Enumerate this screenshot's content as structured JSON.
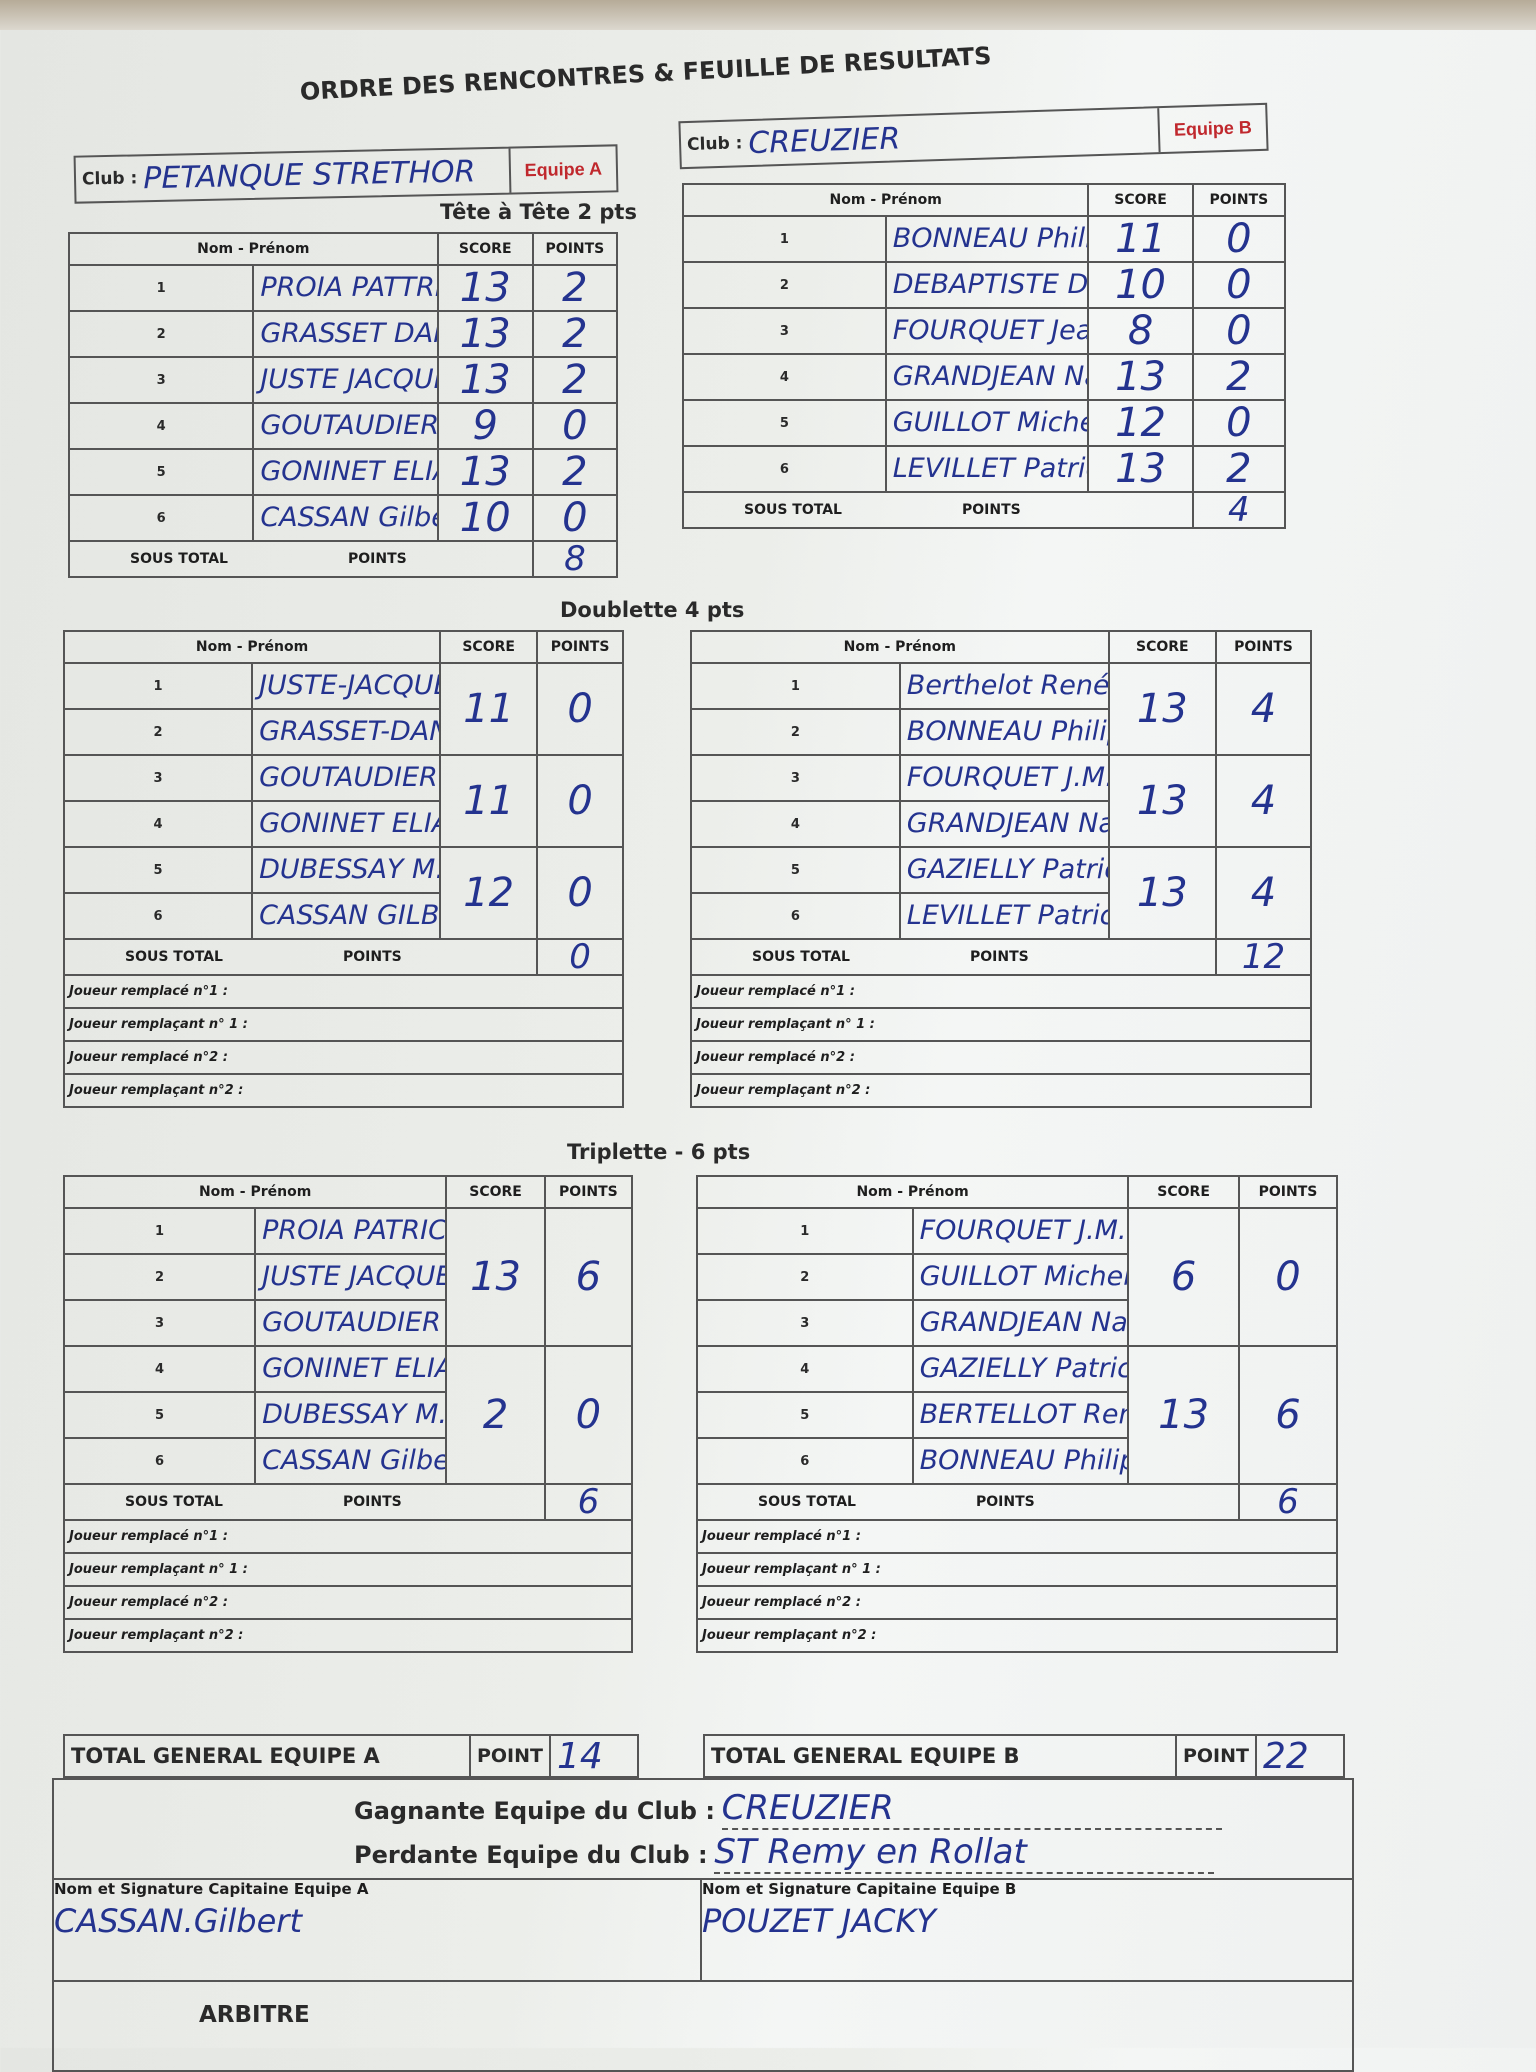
{
  "title": "ORDRE DES RENCONTRES & FEUILLE DE RESULTATS",
  "team_a": {
    "club_label": "Club :",
    "club_value": "PETANQUE STRETHOR",
    "equipe_label": "Equipe A"
  },
  "team_b": {
    "club_label": "Club :",
    "club_value": "CREUZIER",
    "equipe_label": "Equipe B"
  },
  "headers": {
    "name": "Nom - Prénom",
    "score": "SCORE",
    "points": "POINTS",
    "sous_total": "SOUS TOTAL",
    "points_label": "POINTS"
  },
  "replacement_labels": [
    "Joueur remplacé n°1 :",
    "Joueur remplaçant n° 1 :",
    "Joueur remplacé n°2 :",
    "Joueur remplaçant n°2 :"
  ],
  "sections": [
    {
      "label": "Tête à Tête 2 pts",
      "group_size": 1,
      "team_a": {
        "players": [
          "PROIA PATTRICK",
          "GRASSET DANIEL",
          "JUSTE JACQUES",
          "GOUTAUDIER MARTINE",
          "GONINET ELIANE",
          "CASSAN Gilbert"
        ],
        "scores": [
          "13",
          "13",
          "13",
          "9",
          "13",
          "10"
        ],
        "points": [
          "2",
          "2",
          "2",
          "0",
          "2",
          "0"
        ],
        "sub_total": "8"
      },
      "team_b": {
        "players": [
          "BONNEAU Philippe",
          "DEBAPTISTE Didier",
          "FOURQUET Jean Marie",
          "GRANDJEAN Nadia",
          "GUILLOT Michel",
          "LEVILLET Patrick"
        ],
        "scores": [
          "11",
          "10",
          "8",
          "13",
          "12",
          "13"
        ],
        "points": [
          "0",
          "0",
          "0",
          "2",
          "0",
          "2"
        ],
        "sub_total": "4"
      }
    },
    {
      "label": "Doublette 4 pts",
      "group_size": 2,
      "team_a": {
        "players": [
          "JUSTE-JACQUES",
          "GRASSET-DANIEL",
          "GOUTAUDIER MARTINE",
          "GONINET ELIANE",
          "DUBESSAY M.Claude",
          "CASSAN GILBERT"
        ],
        "scores": [
          "11",
          "11",
          "12"
        ],
        "points": [
          "0",
          "0",
          "0"
        ],
        "sub_total": "0"
      },
      "team_b": {
        "players": [
          "Berthelot René",
          "BONNEAU Philippe",
          "FOURQUET J.M.",
          "GRANDJEAN Nadia",
          "GAZIELLY Patrick",
          "LEVILLET Patrick"
        ],
        "scores": [
          "13",
          "13",
          "13"
        ],
        "points": [
          "4",
          "4",
          "4"
        ],
        "sub_total": "12"
      }
    },
    {
      "label": "Triplette - 6 pts",
      "group_size": 3,
      "team_a": {
        "players": [
          "PROIA PATRICK",
          "JUSTE JACQUES",
          "GOUTAUDIER MARTINE",
          "GONINET ELIANE",
          "DUBESSAY M.Claude",
          "CASSAN Gilbert"
        ],
        "scores": [
          "13",
          "2"
        ],
        "points": [
          "6",
          "0"
        ],
        "sub_total": "6"
      },
      "team_b": {
        "players": [
          "FOURQUET J.M.",
          "GUILLOT Michel",
          "GRANDJEAN Nadia",
          "GAZIELLY Patrick",
          "BERTELLOT René",
          "BONNEAU Philippe"
        ],
        "scores": [
          "6",
          "13"
        ],
        "points": [
          "0",
          "6"
        ],
        "sub_total": "6"
      }
    }
  ],
  "totals": {
    "a_label": "TOTAL GENERAL EQUIPE  A",
    "a_point_label": "POINT",
    "a_value": "14",
    "b_label": "TOTAL GENERAL EQUIPE  B",
    "b_point_label": "POINT",
    "b_value": "22"
  },
  "result": {
    "winner_label": "Gagnante Equipe   du Club :",
    "winner_value": "CREUZIER",
    "loser_label": "Perdante Equipe   du Club :",
    "loser_value": "ST Remy en Rollat"
  },
  "captains": {
    "a_label": "Nom et Signature Capitaine Equipe A",
    "a_name": "CASSAN.Gilbert",
    "b_label": "Nom et Signature Capitaine Equipe B",
    "b_name": "POUZET JACKY"
  },
  "arbitre_label": "ARBITRE",
  "colors": {
    "ink": "#24338f",
    "equipe_label": "#c0282d",
    "paper": "#eceeea"
  }
}
